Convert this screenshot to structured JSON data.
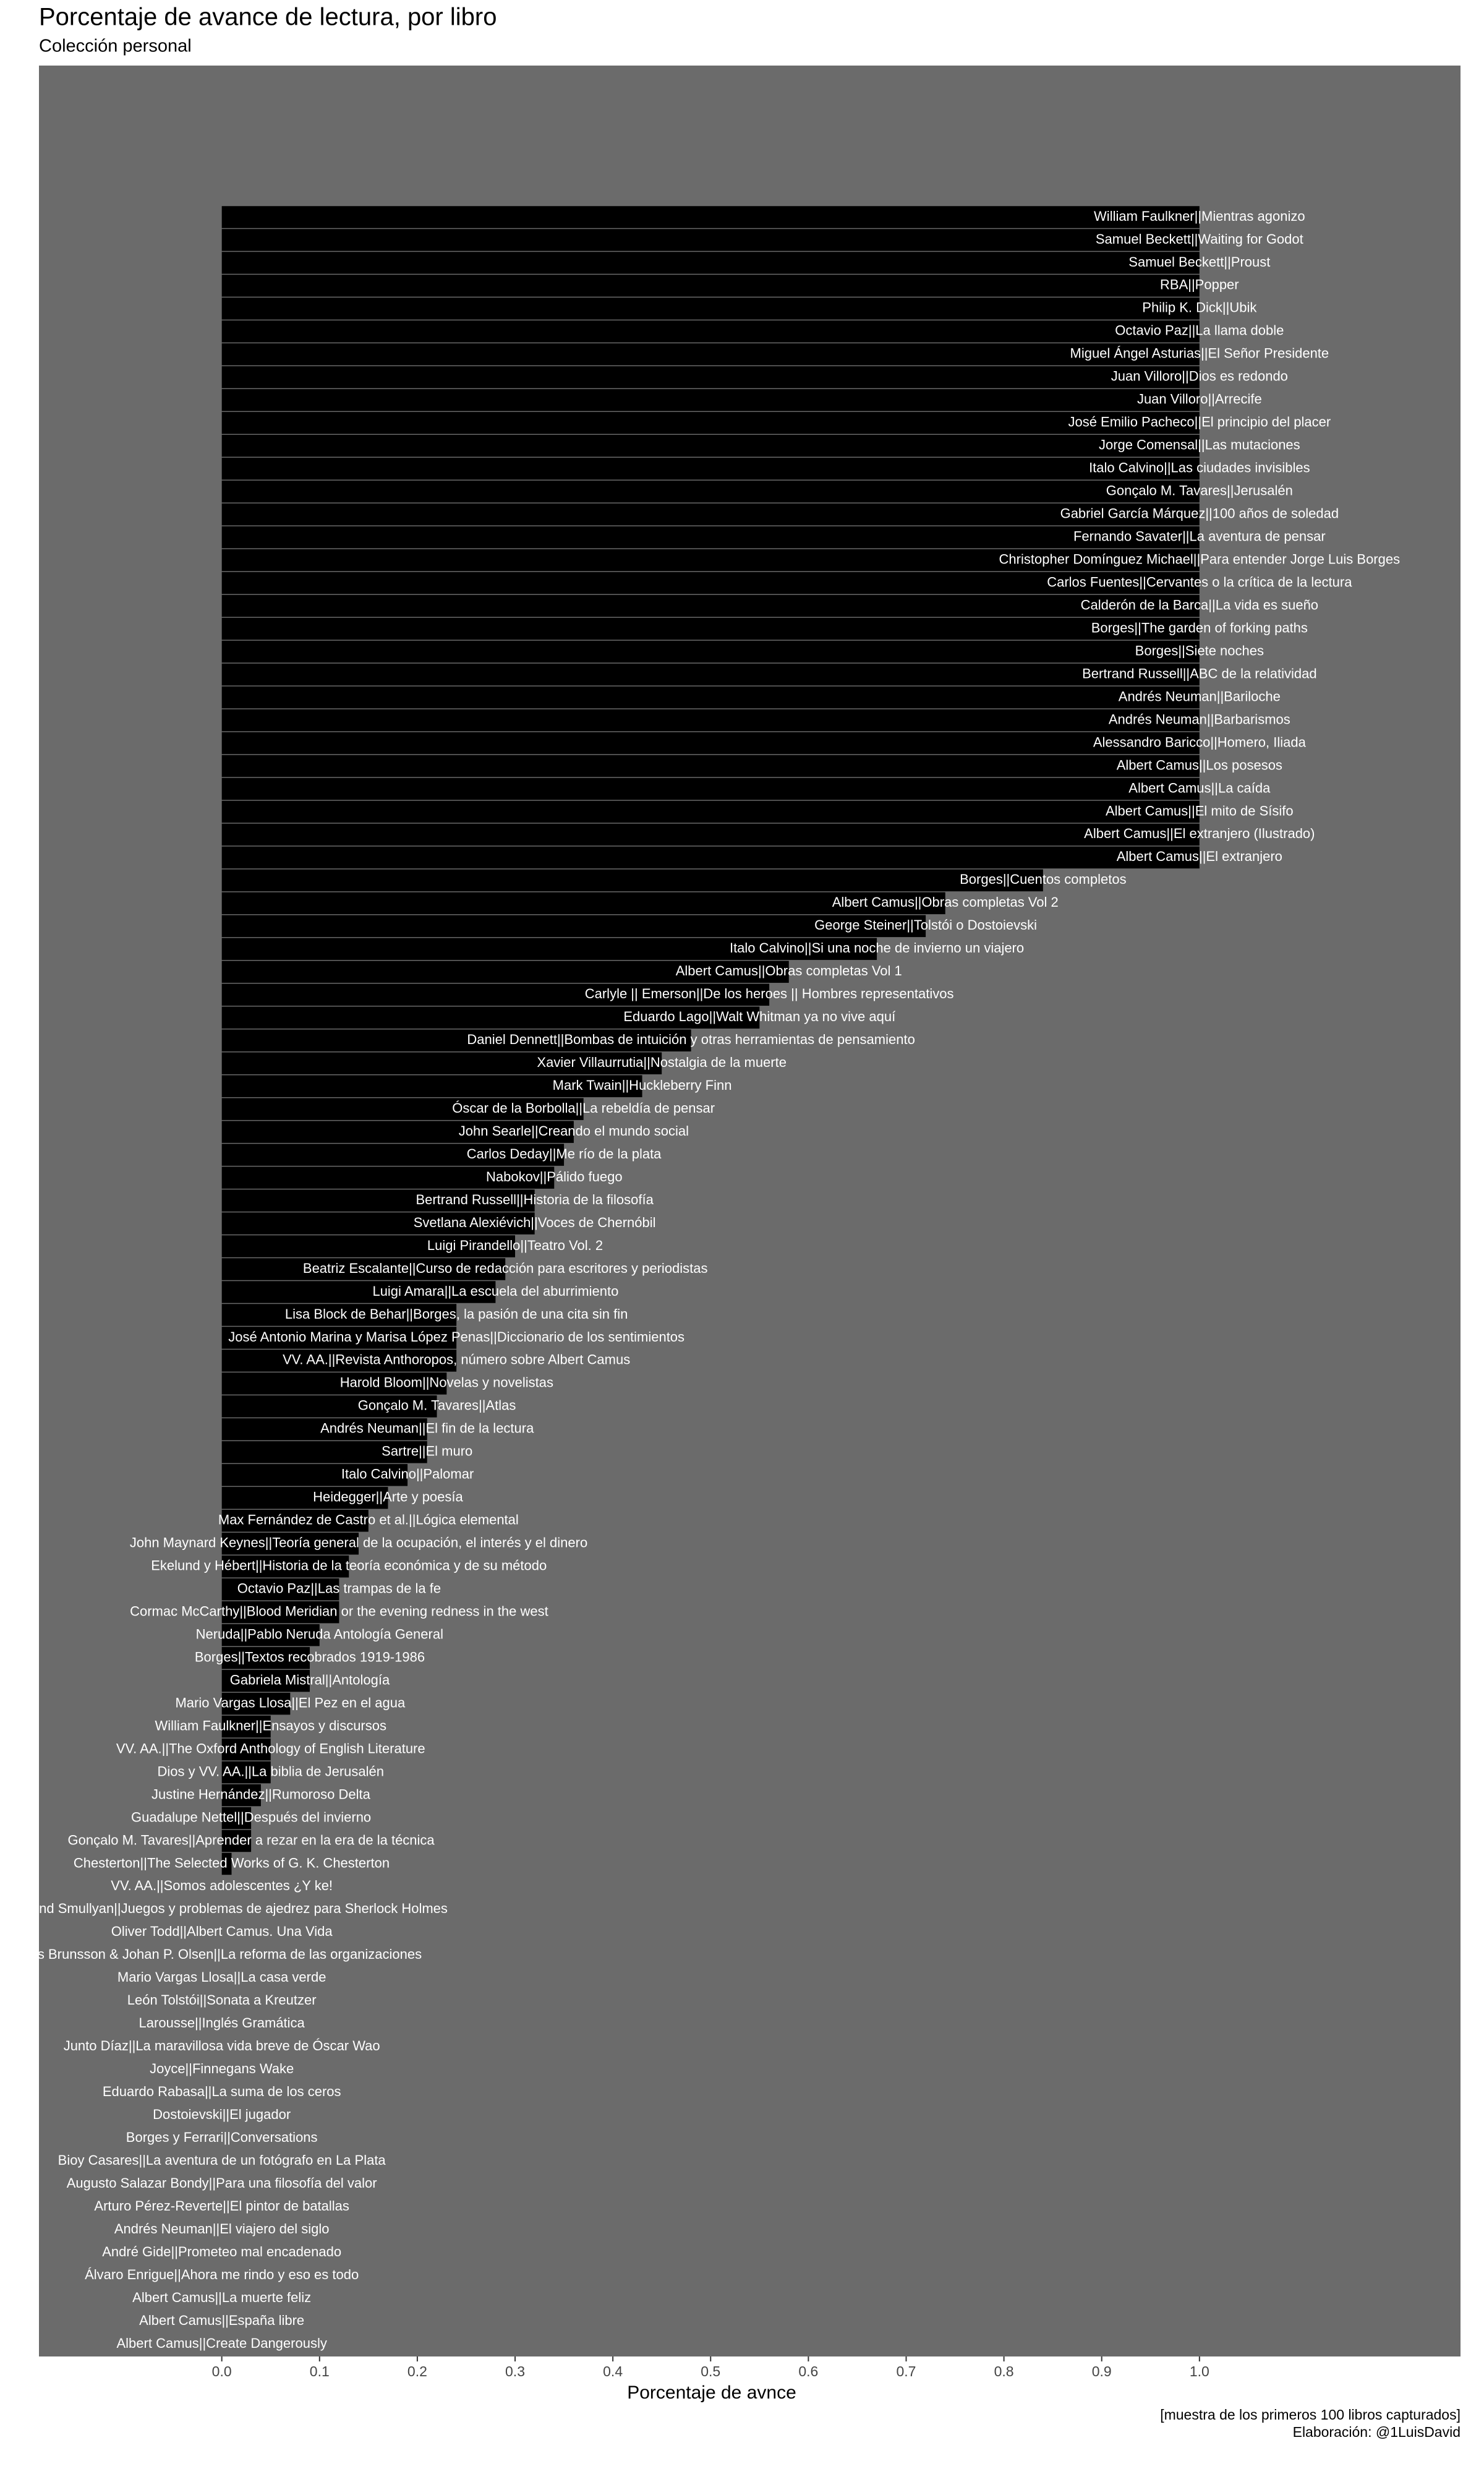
{
  "chart_data": {
    "type": "barh",
    "title": "Porcentaje de avance de lectura, por libro",
    "subtitle": "Colección personal",
    "x_label": "Porcentaje de avnce",
    "caption": [
      "[muestra de los primeros 100 libros capturados]",
      "Elaboración: @1LuisDavid"
    ],
    "color": "#000000",
    "panel_color": "#6b6b6b",
    "label_color": "#ffffff",
    "xlim": [
      -0.187,
      1.267
    ],
    "xticks": [
      {
        "value": 0,
        "label": "0.0"
      },
      {
        "value": 0.1,
        "label": "0.1"
      },
      {
        "value": 0.2,
        "label": "0.2"
      },
      {
        "value": 0.3,
        "label": "0.3"
      },
      {
        "value": 0.4,
        "label": "0.4"
      },
      {
        "value": 0.5,
        "label": "0.5"
      },
      {
        "value": 0.6,
        "label": "0.6"
      },
      {
        "value": 0.7,
        "label": "0.7"
      },
      {
        "value": 0.8,
        "label": "0.8"
      },
      {
        "value": 0.9,
        "label": "0.9"
      },
      {
        "value": 1,
        "label": "1.0"
      }
    ],
    "categories": [
      "William Faulkner||Mientras agonizo",
      "Samuel Beckett||Waiting for Godot",
      "Samuel Beckett||Proust",
      "RBA||Popper",
      "Philip K. Dick||Ubik",
      "Octavio Paz||La llama doble",
      "Miguel Ángel Asturias||El Señor Presidente",
      "Juan Villoro||Dios es redondo",
      "Juan Villoro||Arrecife",
      "José Emilio Pacheco||El principio del placer",
      "Jorge Comensal||Las mutaciones",
      "Italo Calvino||Las ciudades invisibles",
      "Gonçalo M. Tavares||Jerusalén",
      "Gabriel García Márquez||100 años de soledad",
      "Fernando Savater||La aventura de pensar",
      "Christopher Domínguez Michael||Para entender Jorge Luis Borges",
      "Carlos Fuentes||Cervantes o la crítica de la lectura",
      "Calderón de la Barca||La vida es sueño",
      "Borges||The garden of forking paths",
      "Borges||Siete noches",
      "Bertrand Russell||ABC de la relatividad",
      "Andrés Neuman||Bariloche",
      "Andrés Neuman||Barbarismos",
      "Alessandro Baricco||Homero, Iliada",
      "Albert Camus||Los posesos",
      "Albert Camus||La caída",
      "Albert Camus||El mito de Sísifo",
      "Albert Camus||El extranjero (Ilustrado)",
      "Albert Camus||El extranjero",
      "Borges||Cuentos completos",
      "Albert Camus||Obras completas Vol 2",
      "George Steiner||Tolstói o Dostoievski",
      "Italo Calvino||Si una noche de invierno un viajero",
      "Albert Camus||Obras completas Vol 1",
      "Carlyle || Emerson||De los heroes || Hombres representativos",
      "Eduardo Lago||Walt Whitman ya no vive aquí",
      "Daniel Dennett||Bombas de intuición y otras herramientas de pensamiento",
      "Xavier Villaurrutia||Nostalgia de la muerte",
      "Mark Twain||Huckleberry Finn",
      "Óscar de la Borbolla||La rebeldía de pensar",
      "John Searle||Creando el mundo social",
      "Carlos Deday||Me río de la plata",
      "Nabokov||Pálido fuego",
      "Bertrand Russell||Historia de la filosofía",
      "Svetlana Alexiévich||Voces de Chernóbil",
      "Luigi Pirandello||Teatro Vol. 2",
      "Beatriz Escalante||Curso de redacción para escritores y periodistas",
      "Luigi Amara||La escuela del aburrimiento",
      "Lisa Block de Behar||Borges, la pasión de una cita sin fin",
      "José Antonio Marina y Marisa López Penas||Diccionario de los sentimientos",
      "VV. AA.||Revista Anthoropos, número sobre Albert Camus",
      "Harold Bloom||Novelas y novelistas",
      "Gonçalo M. Tavares||Atlas",
      "Andrés Neuman||El fin de la lectura",
      "Sartre||El muro",
      "Italo Calvino||Palomar",
      "Heidegger||Arte y poesía",
      "Max Fernández de Castro et al.||Lógica elemental",
      "John Maynard Keynes||Teoría general de la ocupación, el interés y el dinero",
      "Ekelund y Hébert||Historia de la teoría económica y de su método",
      "Octavio Paz||Las trampas de la fe",
      "Cormac McCarthy||Blood Meridian or the evening redness in the west",
      "Neruda||Pablo Neruda Antología General",
      "Borges||Textos recobrados 1919-1986",
      "Gabriela Mistral||Antología",
      "Mario Vargas Llosa||El Pez en el agua",
      "William Faulkner||Ensayos y discursos",
      "VV. AA.||The Oxford Anthology of English Literature",
      "Dios y VV. AA.||La biblia de Jerusalén",
      "Justine Hernández||Rumoroso Delta",
      "Guadalupe Nettel||Después del invierno",
      "Gonçalo M. Tavares||Aprender a rezar en la era de la técnica",
      "Chesterton||The Selected Works of G. K. Chesterton",
      "VV. AA.||Somos adolescentes ¿Y ke!",
      "Raymond Smullyan||Juegos y problemas de ajedrez para Sherlock Holmes",
      "Oliver Todd||Albert Camus. Una Vida",
      "Nils Brunsson & Johan P. Olsen||La reforma de las organizaciones",
      "Mario Vargas Llosa||La casa verde",
      "León Tolstói||Sonata a Kreutzer",
      "Larousse||Inglés Gramática",
      "Junto Díaz||La maravillosa vida breve de Óscar Wao",
      "Joyce||Finnegans Wake",
      "Eduardo Rabasa||La suma de los ceros",
      "Dostoievski||El jugador",
      "Borges y Ferrari||Conversations",
      "Bioy Casares||La aventura de un fotógrafo en La Plata",
      "Augusto Salazar Bondy||Para una filosofía del valor",
      "Arturo Pérez-Reverte||El pintor de batallas",
      "Andrés Neuman||El viajero del siglo",
      "André Gide||Prometeo mal encadenado",
      "Álvaro Enrigue||Ahora me rindo y eso es todo",
      "Albert Camus||La muerte feliz",
      "Albert Camus||España libre",
      "Albert Camus||Create Dangerously"
    ],
    "values": [
      1,
      1,
      1,
      1,
      1,
      1,
      1,
      1,
      1,
      1,
      1,
      1,
      1,
      1,
      1,
      1,
      1,
      1,
      1,
      1,
      1,
      1,
      1,
      1,
      1,
      1,
      1,
      1,
      1,
      0.84,
      0.74,
      0.72,
      0.67,
      0.58,
      0.56,
      0.55,
      0.48,
      0.45,
      0.43,
      0.37,
      0.36,
      0.35,
      0.34,
      0.32,
      0.32,
      0.3,
      0.29,
      0.28,
      0.24,
      0.24,
      0.24,
      0.23,
      0.22,
      0.21,
      0.21,
      0.19,
      0.17,
      0.15,
      0.14,
      0.13,
      0.12,
      0.12,
      0.1,
      0.09,
      0.09,
      0.07,
      0.05,
      0.05,
      0.05,
      0.04,
      0.03,
      0.03,
      0.01,
      0,
      0,
      0,
      0,
      0,
      0,
      0,
      0,
      0,
      0,
      0,
      0,
      0,
      0,
      0,
      0,
      0,
      0,
      0,
      0,
      0
    ]
  }
}
